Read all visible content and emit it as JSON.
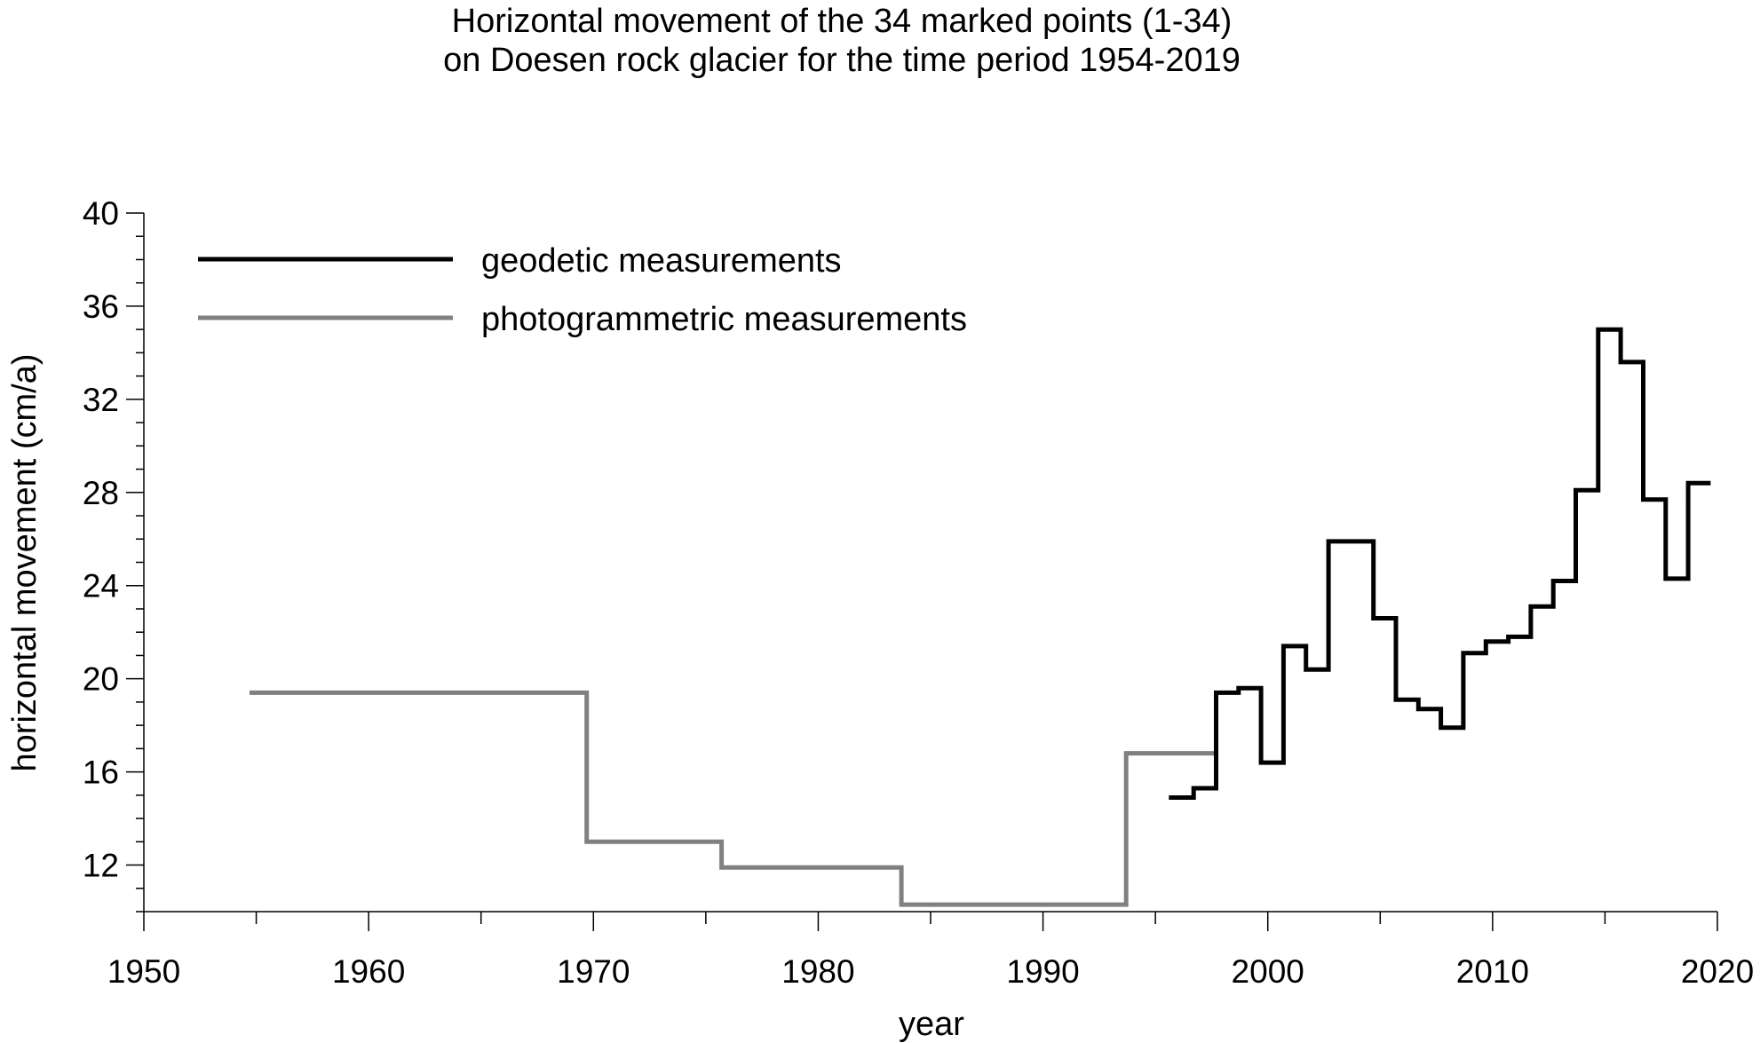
{
  "chart_data": {
    "type": "line",
    "title_lines": [
      "Horizontal movement of the 34 marked points (1-34)",
      "on Doesen rock glacier for the time period 1954-2019"
    ],
    "xlabel": "year",
    "ylabel": "horizontal movement (cm/a)",
    "xlim": [
      1950,
      2020
    ],
    "ylim": [
      10,
      40
    ],
    "x_ticks": [
      1950,
      1960,
      1970,
      1980,
      1990,
      2000,
      2010,
      2020
    ],
    "y_ticks": [
      12,
      16,
      20,
      24,
      28,
      32,
      36,
      40
    ],
    "grid": false,
    "legend_position": "top-left",
    "step": true,
    "series": [
      {
        "name": "geodetic measurements",
        "color": "#000000",
        "steps": [
          {
            "x0": 1995.6,
            "x1": 1996.7,
            "y": 14.9
          },
          {
            "x0": 1996.7,
            "x1": 1997.7,
            "y": 15.3
          },
          {
            "x0": 1997.7,
            "x1": 1998.7,
            "y": 19.4
          },
          {
            "x0": 1998.7,
            "x1": 1999.7,
            "y": 19.6
          },
          {
            "x0": 1999.7,
            "x1": 2000.7,
            "y": 16.4
          },
          {
            "x0": 2000.7,
            "x1": 2001.7,
            "y": 21.4
          },
          {
            "x0": 2001.7,
            "x1": 2002.7,
            "y": 20.4
          },
          {
            "x0": 2002.7,
            "x1": 2004.7,
            "y": 25.9
          },
          {
            "x0": 2004.7,
            "x1": 2005.7,
            "y": 22.6
          },
          {
            "x0": 2005.7,
            "x1": 2006.7,
            "y": 19.1
          },
          {
            "x0": 2006.7,
            "x1": 2007.7,
            "y": 18.7
          },
          {
            "x0": 2007.7,
            "x1": 2008.7,
            "y": 17.9
          },
          {
            "x0": 2008.7,
            "x1": 2009.7,
            "y": 21.1
          },
          {
            "x0": 2009.7,
            "x1": 2010.7,
            "y": 21.6
          },
          {
            "x0": 2010.7,
            "x1": 2011.7,
            "y": 21.8
          },
          {
            "x0": 2011.7,
            "x1": 2012.7,
            "y": 23.1
          },
          {
            "x0": 2012.7,
            "x1": 2013.7,
            "y": 24.2
          },
          {
            "x0": 2013.7,
            "x1": 2014.7,
            "y": 28.1
          },
          {
            "x0": 2014.7,
            "x1": 2015.7,
            "y": 35.0
          },
          {
            "x0": 2015.7,
            "x1": 2016.7,
            "y": 33.6
          },
          {
            "x0": 2016.7,
            "x1": 2017.7,
            "y": 27.7
          },
          {
            "x0": 2017.7,
            "x1": 2018.7,
            "y": 24.3
          },
          {
            "x0": 2018.7,
            "x1": 2019.7,
            "y": 28.4
          }
        ]
      },
      {
        "name": "photogrammetric measurements",
        "color": "#808080",
        "steps": [
          {
            "x0": 1954.7,
            "x1": 1969.7,
            "y": 19.4
          },
          {
            "x0": 1969.7,
            "x1": 1975.7,
            "y": 13.0
          },
          {
            "x0": 1975.7,
            "x1": 1983.7,
            "y": 11.9
          },
          {
            "x0": 1983.7,
            "x1": 1993.7,
            "y": 10.3
          },
          {
            "x0": 1993.7,
            "x1": 1997.7,
            "y": 16.8
          }
        ]
      }
    ]
  }
}
